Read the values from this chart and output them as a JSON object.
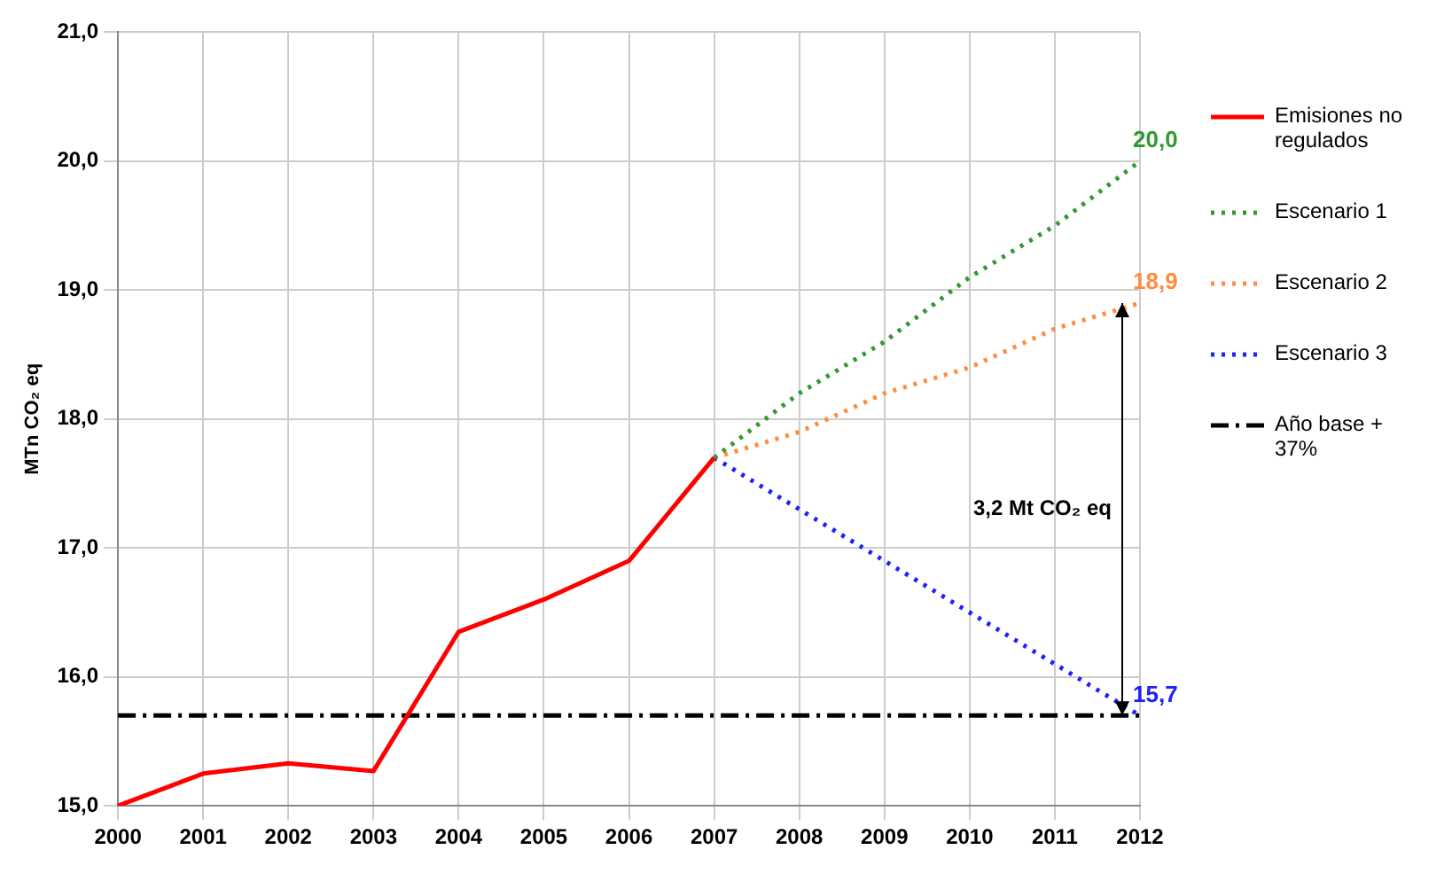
{
  "chart_data": {
    "type": "line",
    "ylabel": "MTn CO₂ eq",
    "categories": [
      "2000",
      "2001",
      "2002",
      "2003",
      "2004",
      "2005",
      "2006",
      "2007",
      "2008",
      "2009",
      "2010",
      "2011",
      "2012"
    ],
    "series": [
      {
        "name": "Emisiones no regulados",
        "color": "#ff0000",
        "line_style": "solid",
        "values": [
          15.0,
          15.25,
          15.33,
          15.27,
          16.35,
          16.6,
          16.9,
          17.7,
          null,
          null,
          null,
          null,
          null
        ]
      },
      {
        "name": "Escenario 1",
        "color": "#339933",
        "line_style": "dotted",
        "values": [
          null,
          null,
          null,
          null,
          null,
          null,
          null,
          17.7,
          18.2,
          18.6,
          19.1,
          19.5,
          20.0
        ],
        "value_labels": [
          null,
          null,
          null,
          null,
          null,
          null,
          null,
          null,
          null,
          null,
          null,
          null,
          "20,0"
        ]
      },
      {
        "name": "Escenario 2",
        "color": "#ff8c40",
        "line_style": "dotted",
        "values": [
          null,
          null,
          null,
          null,
          null,
          null,
          null,
          17.7,
          17.9,
          18.2,
          18.4,
          18.7,
          18.9
        ],
        "value_labels": [
          null,
          null,
          null,
          null,
          null,
          null,
          null,
          null,
          null,
          null,
          null,
          null,
          "18,9"
        ]
      },
      {
        "name": "Escenario 3",
        "color": "#2020ff",
        "line_style": "dotted",
        "values": [
          null,
          null,
          null,
          null,
          null,
          null,
          null,
          17.7,
          17.3,
          16.9,
          16.5,
          16.1,
          15.7
        ],
        "value_labels": [
          null,
          null,
          null,
          null,
          null,
          null,
          null,
          null,
          null,
          null,
          null,
          null,
          "15,7"
        ]
      },
      {
        "name": "Año base + 37%",
        "color": "#000000",
        "line_style": "dashed",
        "values": [
          15.7,
          15.7,
          15.7,
          15.7,
          15.7,
          15.7,
          15.7,
          15.7,
          15.7,
          15.7,
          15.7,
          15.7,
          15.7
        ]
      }
    ],
    "ylim": [
      15,
      21
    ],
    "yticks": [
      {
        "value": 15,
        "label": "15,0"
      },
      {
        "value": 16,
        "label": "16,0"
      },
      {
        "value": 17,
        "label": "17,0"
      },
      {
        "value": 18,
        "label": "18,0"
      },
      {
        "value": 19,
        "label": "19,0"
      },
      {
        "value": 20,
        "label": "20,0"
      },
      {
        "value": 21,
        "label": "21,0"
      }
    ],
    "grid": true,
    "legend": "right",
    "marker": "none",
    "annotations": [
      "3,2 Mt CO₂ eq"
    ]
  }
}
